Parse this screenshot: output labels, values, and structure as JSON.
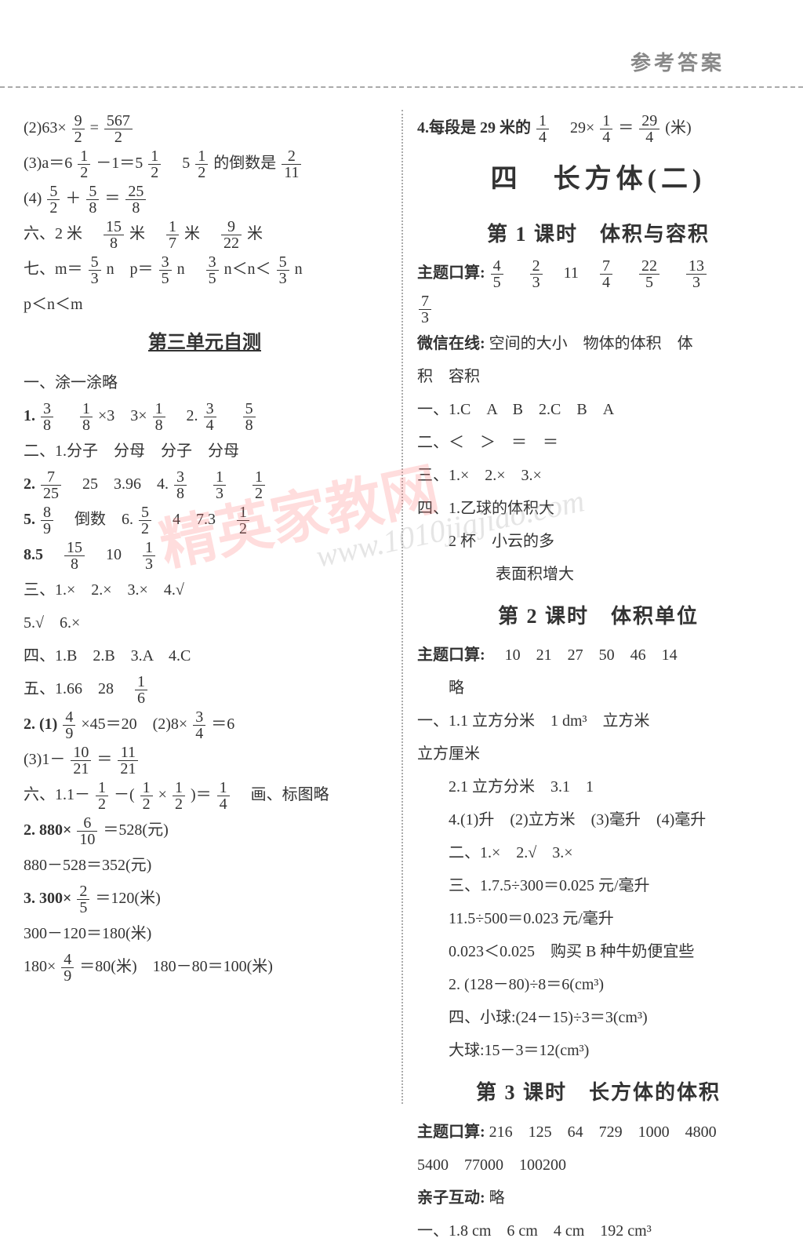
{
  "header_title": "参考答案",
  "left": {
    "l1a": "(2)63×",
    "l1f": {
      "n": "9",
      "d": "2"
    },
    "l1b": "=",
    "l1g": {
      "n": "567",
      "d": "2"
    },
    "l2a": "(3)a＝6 ",
    "l2f1": {
      "n": "1",
      "d": "2"
    },
    "l2b": "－1＝5 ",
    "l2f2": {
      "n": "1",
      "d": "2"
    },
    "l2c": "　5 ",
    "l2f3": {
      "n": "1",
      "d": "2"
    },
    "l2d": "的倒数是",
    "l2f4": {
      "n": "2",
      "d": "11"
    },
    "l3a": "(4)",
    "l3f1": {
      "n": "5",
      "d": "2"
    },
    "l3b": "＋",
    "l3f2": {
      "n": "5",
      "d": "8"
    },
    "l3c": "＝",
    "l3f3": {
      "n": "25",
      "d": "8"
    },
    "l4a": "六、2 米　",
    "l4f1": {
      "n": "15",
      "d": "8"
    },
    "l4b": "米　",
    "l4f2": {
      "n": "1",
      "d": "7"
    },
    "l4c": "米　",
    "l4f3": {
      "n": "9",
      "d": "22"
    },
    "l4d": "米",
    "l5a": "七、m＝",
    "l5f1": {
      "n": "5",
      "d": "3"
    },
    "l5b": "n　p＝",
    "l5f2": {
      "n": "3",
      "d": "5"
    },
    "l5c": "n　",
    "l5f3": {
      "n": "3",
      "d": "5"
    },
    "l5d": "n＜n＜",
    "l5f4": {
      "n": "5",
      "d": "3"
    },
    "l5e": "n",
    "l6": "p＜n＜m",
    "unit_test": "第三单元自测",
    "t1": "一、涂一涂略",
    "t2a": "1.",
    "t2f1": {
      "n": "3",
      "d": "8"
    },
    "t2b": "　",
    "t2f2": {
      "n": "1",
      "d": "8"
    },
    "t2c": "×3　3×",
    "t2f3": {
      "n": "1",
      "d": "8"
    },
    "t2d": "　2.",
    "t2f4": {
      "n": "3",
      "d": "4"
    },
    "t2e": "　",
    "t2f5": {
      "n": "5",
      "d": "8"
    },
    "t3": "二、1.分子　分母　分子　分母",
    "t4a": "2.",
    "t4f1": {
      "n": "7",
      "d": "25"
    },
    "t4b": "　25　3.96　4.",
    "t4f2": {
      "n": "3",
      "d": "8"
    },
    "t4c": "　",
    "t4f3": {
      "n": "1",
      "d": "3"
    },
    "t4d": "　",
    "t4f4": {
      "n": "1",
      "d": "2"
    },
    "t5a": "5.",
    "t5f1": {
      "n": "8",
      "d": "9"
    },
    "t5b": "　倒数　6.",
    "t5f2": {
      "n": "5",
      "d": "2"
    },
    "t5c": "　4　7.3　",
    "t5f3": {
      "n": "1",
      "d": "2"
    },
    "t6a": "8.5　",
    "t6f1": {
      "n": "15",
      "d": "8"
    },
    "t6b": "　10　",
    "t6f2": {
      "n": "1",
      "d": "3"
    },
    "t7": "三、1.×　2.×　3.×　4.√",
    "t8": "5.√　6.×",
    "t9": "四、1.B　2.B　3.A　4.C",
    "t10a": "五、1.66　28　",
    "t10f": {
      "n": "1",
      "d": "6"
    },
    "t11a": "2. (1)",
    "t11f1": {
      "n": "4",
      "d": "9"
    },
    "t11b": "×45＝20　(2)8×",
    "t11f2": {
      "n": "3",
      "d": "4"
    },
    "t11c": "＝6",
    "t12a": "(3)1－",
    "t12f1": {
      "n": "10",
      "d": "21"
    },
    "t12b": "＝",
    "t12f2": {
      "n": "11",
      "d": "21"
    },
    "t13a": "六、1.1－",
    "t13f1": {
      "n": "1",
      "d": "2"
    },
    "t13b": "－(",
    "t13f2": {
      "n": "1",
      "d": "2"
    },
    "t13c": "×",
    "t13f3": {
      "n": "1",
      "d": "2"
    },
    "t13d": ")＝",
    "t13f4": {
      "n": "1",
      "d": "4"
    },
    "t13e": "　画、标图略",
    "t14a": "2. 880×",
    "t14f": {
      "n": "6",
      "d": "10"
    },
    "t14b": "＝528(元)",
    "t15": "880－528＝352(元)",
    "t16a": "3. 300×",
    "t16f": {
      "n": "2",
      "d": "5"
    },
    "t16b": "＝120(米)",
    "t17": "300－120＝180(米)",
    "t18a": "180×",
    "t18f": {
      "n": "4",
      "d": "9"
    },
    "t18b": "＝80(米)　180－80＝100(米)"
  },
  "right": {
    "r1a": "4.每段是 29 米的",
    "r1f1": {
      "n": "1",
      "d": "4"
    },
    "r1b": "　29×",
    "r1f2": {
      "n": "1",
      "d": "4"
    },
    "r1c": "＝",
    "r1f3": {
      "n": "29",
      "d": "4"
    },
    "r1d": "(米)",
    "chapter": "四　长方体(二)",
    "lesson1": "第 1 课时　体积与容积",
    "r2a": "主题口算:",
    "r2f1": {
      "n": "4",
      "d": "5"
    },
    "r2b": "　",
    "r2f2": {
      "n": "2",
      "d": "3"
    },
    "r2c": "　11　",
    "r2f3": {
      "n": "7",
      "d": "4"
    },
    "r2d": "　",
    "r2f4": {
      "n": "22",
      "d": "5"
    },
    "r2e": "　",
    "r2f5": {
      "n": "13",
      "d": "3"
    },
    "r2f6": {
      "n": "7",
      "d": "3"
    },
    "r3a": "微信在线:",
    "r3b": "空间的大小　物体的体积　体",
    "r3c": "积　容积",
    "r4": "一、1.C　A　B　2.C　B　A",
    "r5": "二、＜　＞　＝　＝",
    "r6": "三、1.×　2.×　3.×",
    "r7": "四、1.乙球的体积大",
    "r8": "　　2 杯　小云的多",
    "r9": "　　　　　表面积增大",
    "lesson2": "第 2 课时　体积单位",
    "r10a": "主题口算:",
    "r10b": "　10　21　27　50　46　14",
    "r11": "　　略",
    "r12": "一、1.1 立方分米　1 dm³　立方米",
    "r12b": "立方厘米",
    "r13": "2.1 立方分米　3.1　1",
    "r14": "4.(1)升　(2)立方米　(3)毫升　(4)毫升",
    "r15": "二、1.×　2.√　3.×",
    "r16": "三、1.7.5÷300＝0.025 元/毫升",
    "r17": "11.5÷500＝0.023 元/毫升",
    "r18": "0.023＜0.025　购买 B 种牛奶便宜些",
    "r19": "2. (128－80)÷8＝6(cm³)",
    "r20": "四、小球:(24－15)÷3＝3(cm³)",
    "r21": "大球:15－3＝12(cm³)",
    "lesson3": "第 3 课时　长方体的体积",
    "r22a": "主题口算:",
    "r22b": "216　125　64　729　1000　4800",
    "r23": "5400　77000　100200",
    "r24a": "亲子互动:",
    "r24b": "略",
    "r25": "一、1.8 cm　6 cm　4 cm　192 cm³"
  },
  "watermark": "精英家教网",
  "watermark2": "www.1010jiajiao.com"
}
